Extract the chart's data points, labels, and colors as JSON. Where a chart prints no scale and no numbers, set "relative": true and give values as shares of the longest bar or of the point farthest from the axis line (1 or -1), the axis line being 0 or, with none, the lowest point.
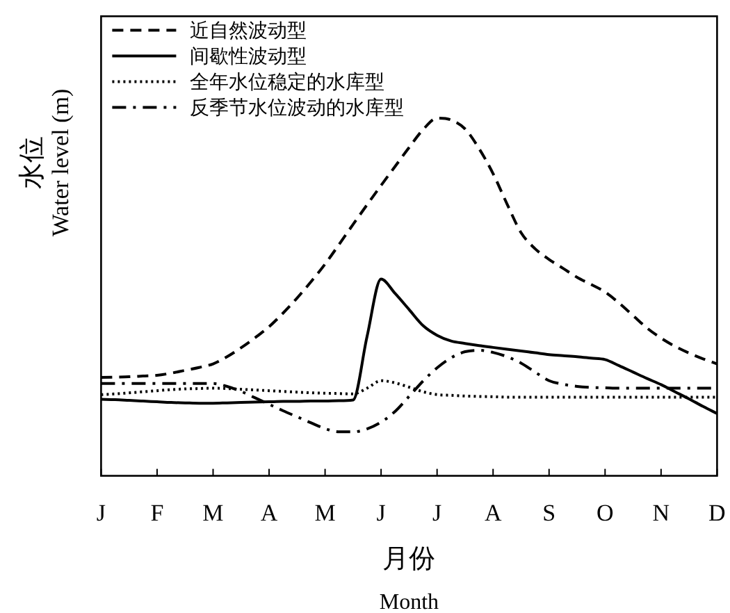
{
  "chart_data": {
    "type": "line",
    "relative": true,
    "xlabel": "月份\nMonth",
    "ylabel": "水位\nWater level (m)",
    "legend": "top left",
    "grid": false,
    "categories": [
      "J",
      null,
      null,
      null,
      "F",
      null,
      null,
      null,
      "M",
      null,
      null,
      null,
      "A",
      null,
      null,
      null,
      "M",
      null,
      null,
      null,
      "J",
      null,
      null,
      null,
      "J",
      null,
      null,
      null,
      "A",
      null,
      null,
      null,
      "S",
      null,
      null,
      null,
      "O",
      null,
      null,
      null,
      "N",
      null,
      null,
      null,
      "D"
    ],
    "series": [
      {
        "name": "近自然波动型",
        "color": "#000000",
        "line_style": "dashed",
        "values": [
          0.275,
          0.276,
          0.277,
          0.279,
          0.281,
          0.287,
          0.295,
          0.303,
          0.313,
          0.333,
          0.358,
          0.386,
          0.417,
          0.455,
          0.497,
          0.543,
          0.592,
          0.647,
          0.703,
          0.758,
          0.812,
          0.865,
          0.918,
          0.968,
          1.0,
          0.995,
          0.97,
          0.915,
          0.845,
          0.76,
          0.68,
          0.635,
          0.605,
          0.58,
          0.555,
          0.535,
          0.514,
          0.483,
          0.448,
          0.413,
          0.385,
          0.362,
          0.343,
          0.327,
          0.313
        ]
      },
      {
        "name": "间歇性波动型",
        "color": "#000000",
        "line_style": "solid",
        "values": [
          0.214,
          0.213,
          0.211,
          0.209,
          0.207,
          0.205,
          0.204,
          0.203,
          0.203,
          0.204,
          0.205,
          0.206,
          0.207,
          0.208,
          0.208,
          0.209,
          0.209,
          0.21,
          0.212,
          0.39,
          0.55,
          0.51,
          0.465,
          0.42,
          0.393,
          0.377,
          0.37,
          0.364,
          0.359,
          0.354,
          0.349,
          0.344,
          0.339,
          0.336,
          0.333,
          0.329,
          0.325,
          0.308,
          0.29,
          0.272,
          0.255,
          0.235,
          0.215,
          0.194,
          0.174
        ]
      },
      {
        "name": "全年水位稳定的水库型",
        "color": "#000000",
        "line_style": "dotted",
        "values": [
          0.227,
          0.229,
          0.232,
          0.235,
          0.238,
          0.241,
          0.243,
          0.244,
          0.245,
          0.244,
          0.242,
          0.24,
          0.238,
          0.236,
          0.234,
          0.232,
          0.231,
          0.23,
          0.229,
          0.245,
          0.266,
          0.26,
          0.248,
          0.235,
          0.227,
          0.225,
          0.223,
          0.222,
          0.221,
          0.22,
          0.22,
          0.22,
          0.22,
          0.22,
          0.22,
          0.22,
          0.22,
          0.22,
          0.22,
          0.22,
          0.22,
          0.22,
          0.22,
          0.22,
          0.22
        ]
      },
      {
        "name": "反季节水位波动的水库型",
        "color": "#000000",
        "line_style": "dashdot",
        "values": [
          0.258,
          0.258,
          0.258,
          0.258,
          0.258,
          0.258,
          0.258,
          0.258,
          0.258,
          0.25,
          0.236,
          0.218,
          0.2,
          0.182,
          0.165,
          0.148,
          0.132,
          0.123,
          0.123,
          0.131,
          0.15,
          0.18,
          0.222,
          0.265,
          0.302,
          0.33,
          0.347,
          0.351,
          0.345,
          0.333,
          0.315,
          0.29,
          0.266,
          0.256,
          0.25,
          0.247,
          0.246,
          0.245,
          0.245,
          0.245,
          0.245,
          0.245,
          0.245,
          0.245,
          0.245
        ]
      }
    ]
  }
}
